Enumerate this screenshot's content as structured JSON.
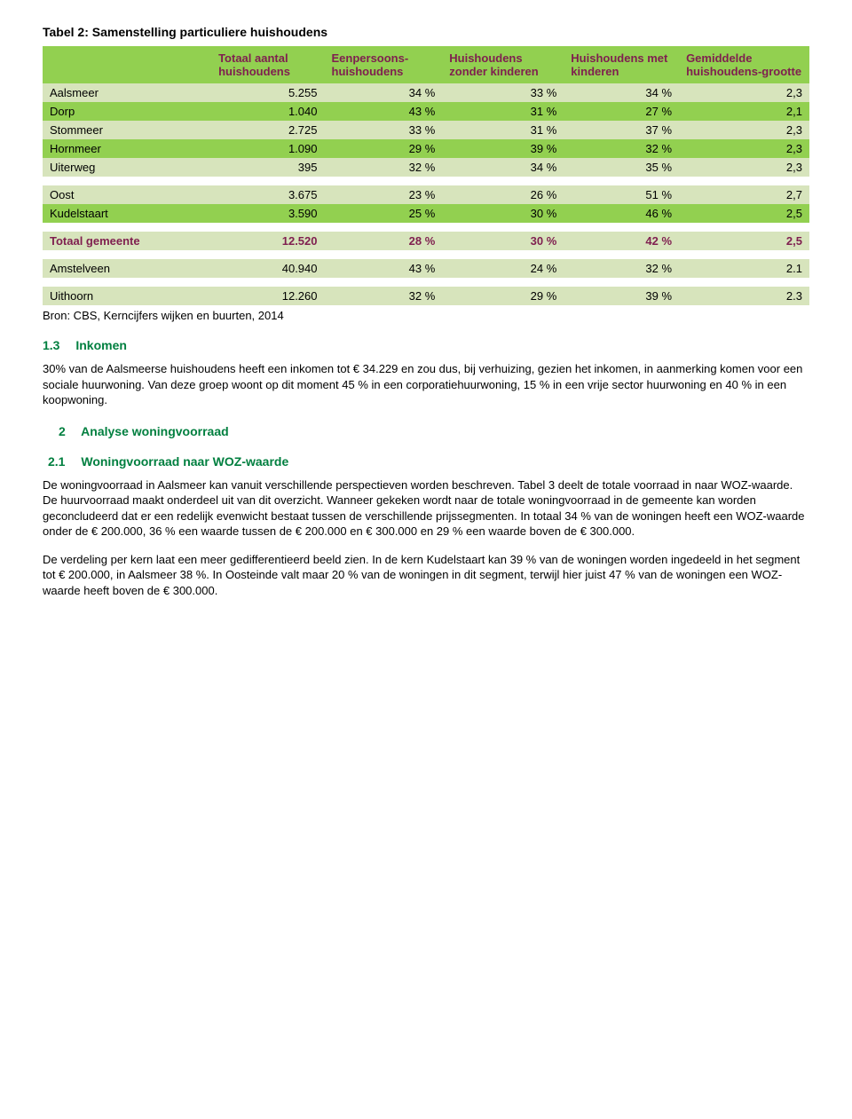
{
  "table_caption": "Tabel 2: Samenstelling particuliere huishoudens",
  "table": {
    "headers": [
      "",
      "Totaal aantal huishoudens",
      "Eenpersoons-huishoudens",
      "Huishoudens zonder kinderen",
      "Huishoudens met kinderen",
      "Gemiddelde huishoudens-grootte"
    ],
    "groups": [
      {
        "style": "alt",
        "rows": [
          {
            "label": "Aalsmeer",
            "cells": [
              "5.255",
              "34 %",
              "33 %",
              "34 %",
              "2,3"
            ],
            "cls": "light"
          },
          {
            "label": "Dorp",
            "cells": [
              "1.040",
              "43 %",
              "31 %",
              "27 %",
              "2,1"
            ],
            "cls": "green"
          },
          {
            "label": "Stommeer",
            "cells": [
              "2.725",
              "33 %",
              "31 %",
              "37 %",
              "2,3"
            ],
            "cls": "light"
          },
          {
            "label": "Hornmeer",
            "cells": [
              "1.090",
              "29 %",
              "39 %",
              "32 %",
              "2,3"
            ],
            "cls": "green"
          },
          {
            "label": "Uiterweg",
            "cells": [
              "395",
              "32 %",
              "34 %",
              "35 %",
              "2,3"
            ],
            "cls": "light"
          }
        ]
      },
      {
        "style": "alt",
        "rows": [
          {
            "label": "Oost",
            "cells": [
              "3.675",
              "23 %",
              "26 %",
              "51 %",
              "2,7"
            ],
            "cls": "light"
          },
          {
            "label": "Kudelstaart",
            "cells": [
              "3.590",
              "25 %",
              "30 %",
              "46 %",
              "2,5"
            ],
            "cls": "green"
          }
        ]
      },
      {
        "style": "total",
        "rows": [
          {
            "label": "Totaal gemeente",
            "cells": [
              "12.520",
              "28 %",
              "30 %",
              "42 %",
              "2,5"
            ],
            "cls": "light totalrow"
          }
        ]
      },
      {
        "style": "single",
        "rows": [
          {
            "label": "Amstelveen",
            "cells": [
              "40.940",
              "43 %",
              "24 %",
              "32 %",
              "2.1"
            ],
            "cls": "light"
          }
        ]
      },
      {
        "style": "single",
        "rows": [
          {
            "label": "Uithoorn",
            "cells": [
              "12.260",
              "32 %",
              "29 %",
              "39 %",
              "2.3"
            ],
            "cls": "light"
          }
        ]
      }
    ]
  },
  "source_line": "Bron: CBS, Kerncijfers wijken en buurten, 2014",
  "sec13": {
    "num": "1.3",
    "title": "Inkomen",
    "para": "30% van de Aalsmeerse huishoudens  heeft een inkomen tot € 34.229 en zou dus, bij verhuizing, gezien het inkomen, in aanmerking komen voor een sociale huurwoning. Van deze groep woont op dit moment 45 % in een corporatiehuurwoning, 15 % in een vrije sector huurwoning en 40 % in een koopwoning."
  },
  "sec2": {
    "num": "2",
    "title": "Analyse woningvoorraad"
  },
  "sec21": {
    "num": "2.1",
    "title": "Woningvoorraad naar WOZ-waarde",
    "para1": "De woningvoorraad in Aalsmeer kan vanuit verschillende perspectieven worden beschreven. Tabel 3 deelt de totale voorraad in naar WOZ-waarde. De huurvoorraad maakt onderdeel uit van dit overzicht. Wanneer gekeken wordt naar de totale woningvoorraad in de gemeente kan worden geconcludeerd dat er een redelijk evenwicht bestaat tussen de verschillende prijssegmenten. In totaal 34 % van de woningen heeft een WOZ-waarde onder de € 200.000, 36 % een waarde tussen de € 200.000 en € 300.000 en 29 % een waarde boven de € 300.000.",
    "para2": "De verdeling per kern laat een meer gedifferentieerd beeld zien. In de kern Kudelstaart kan 39 % van de woningen worden ingedeeld in het segment tot € 200.000, in Aalsmeer 38 %. In Oosteinde valt maar 20 % van de woningen in dit segment, terwijl hier juist 47 % van de woningen een WOZ-waarde heeft boven de € 300.000."
  },
  "colors": {
    "header_bg": "#92d050",
    "header_text": "#7f1f4f",
    "row_light": "#d7e4bc",
    "row_green": "#92d050",
    "section_heading": "#007f3f"
  }
}
